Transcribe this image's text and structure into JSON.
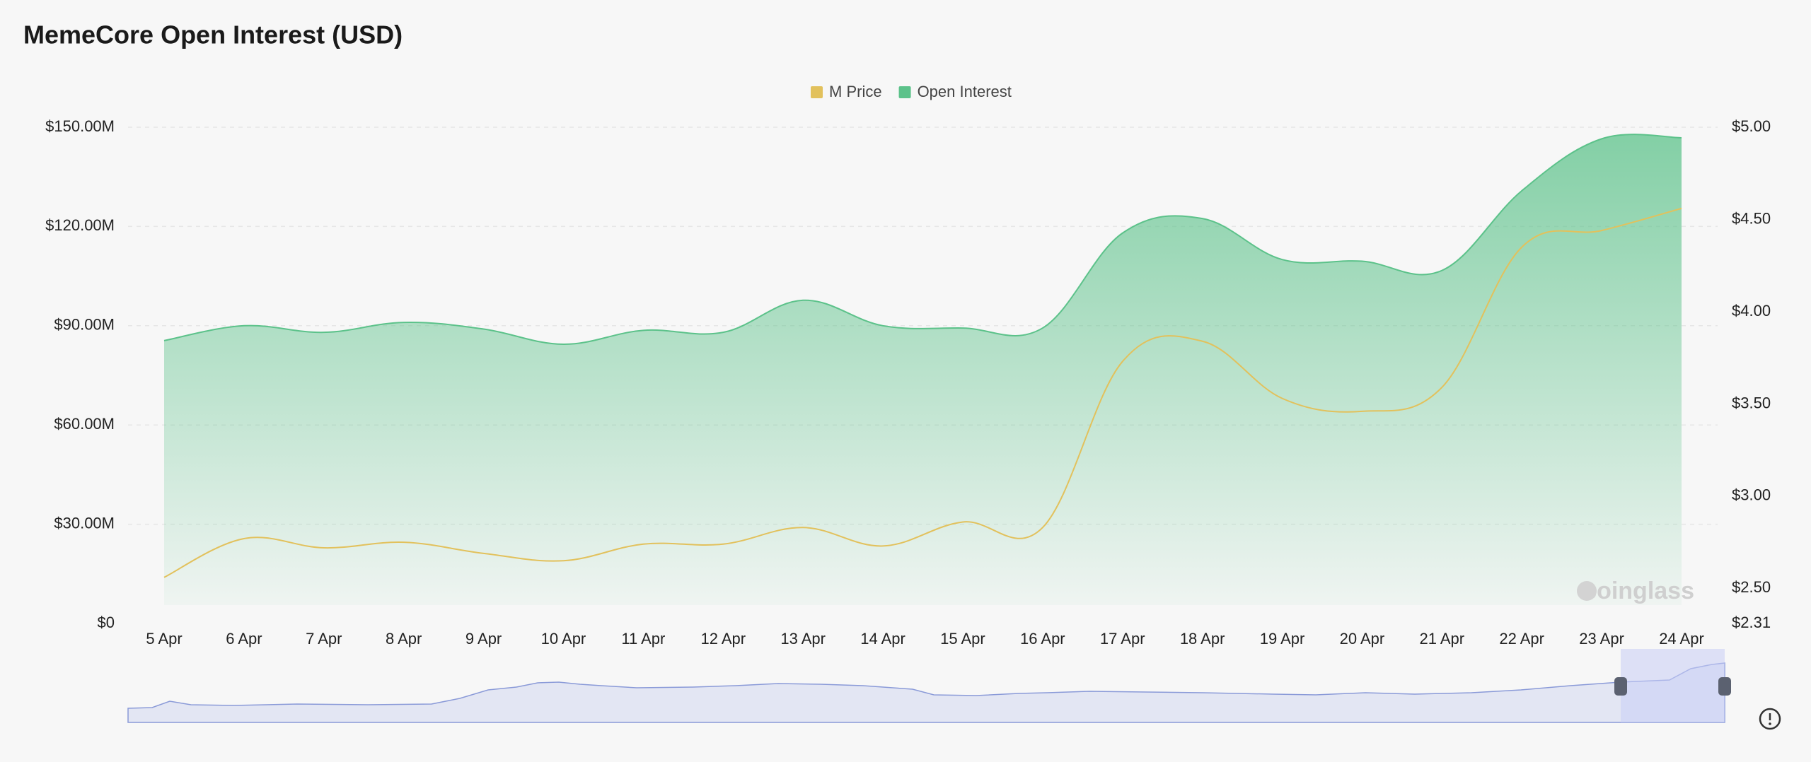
{
  "chart_data": {
    "type": "line",
    "title": "MemeCore Open Interest (USD)",
    "watermark": "coinglass",
    "categories": [
      "5 Apr",
      "6 Apr",
      "7 Apr",
      "8 Apr",
      "9 Apr",
      "10 Apr",
      "11 Apr",
      "12 Apr",
      "13 Apr",
      "14 Apr",
      "15 Apr",
      "16 Apr",
      "17 Apr",
      "18 Apr",
      "19 Apr",
      "20 Apr",
      "21 Apr",
      "22 Apr",
      "23 Apr",
      "24 Apr"
    ],
    "series": [
      {
        "name": "M Price",
        "color": "#e2c15c",
        "axis": "y2",
        "values": [
          2.56,
          2.77,
          2.72,
          2.75,
          2.69,
          2.65,
          2.74,
          2.74,
          2.83,
          2.73,
          2.86,
          2.83,
          3.73,
          3.84,
          3.53,
          3.46,
          3.59,
          4.35,
          4.44,
          4.56
        ]
      },
      {
        "name": "Open Interest",
        "color": "#5cc28a",
        "area": true,
        "values": [
          85500000,
          90000000,
          88000000,
          91000000,
          89000000,
          84400000,
          88600000,
          88000000,
          97700000,
          90000000,
          89300000,
          89300000,
          118000000,
          122400000,
          110000000,
          109500000,
          106700000,
          130800000,
          146500000,
          146800000
        ]
      }
    ],
    "ylim": [
      0,
      150000000
    ],
    "yticks": [
      {
        "value": 0,
        "label": "$0"
      },
      {
        "value": 30000000,
        "label": "$30.00M"
      },
      {
        "value": 60000000,
        "label": "$60.00M"
      },
      {
        "value": 90000000,
        "label": "$90.00M"
      },
      {
        "value": 120000000,
        "label": "$120.00M"
      },
      {
        "value": 150000000,
        "label": "$150.00M"
      }
    ],
    "y2lim": [
      2.31,
      5.0
    ],
    "y2ticks": [
      {
        "value": 2.31,
        "label": "$2.31"
      },
      {
        "value": 2.5,
        "label": "$2.50"
      },
      {
        "value": 3.0,
        "label": "$3.00"
      },
      {
        "value": 3.5,
        "label": "$3.50"
      },
      {
        "value": 4.0,
        "label": "$4.00"
      },
      {
        "value": 4.5,
        "label": "$4.50"
      },
      {
        "value": 5.0,
        "label": "$5.00"
      }
    ],
    "grid": true,
    "legend": "top"
  }
}
